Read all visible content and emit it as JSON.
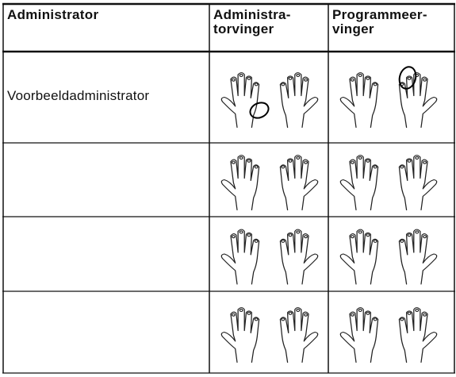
{
  "table": {
    "headers": [
      "Administrator",
      "Administra-\ntorvinger",
      "Programmeer-\nvinger"
    ],
    "rows": [
      [
        "Voorbeeldadministrator"
      ]
    ]
  }
}
